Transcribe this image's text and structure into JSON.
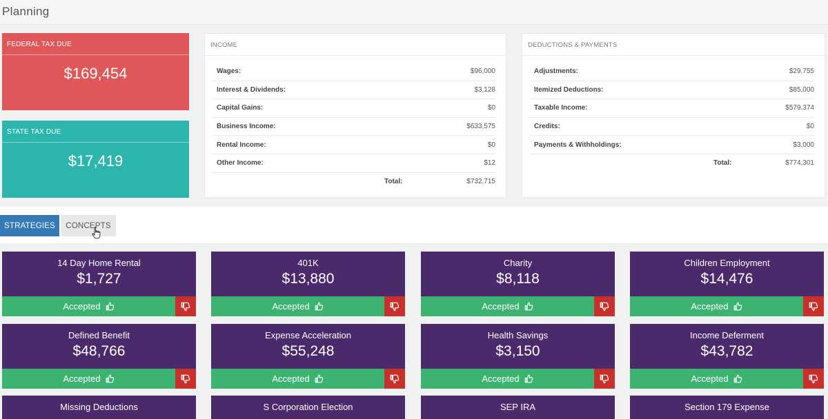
{
  "page": {
    "title": "Planning"
  },
  "federal": {
    "label": "FEDERAL TAX DUE",
    "value": "$169,454"
  },
  "state": {
    "label": "STATE TAX DUE",
    "value": "$17,419"
  },
  "income": {
    "title": "INCOME",
    "rows": [
      {
        "label": "Wages:",
        "value": "$96,000"
      },
      {
        "label": "Interest & Dividends:",
        "value": "$3,128"
      },
      {
        "label": "Capital Gains:",
        "value": "$0"
      },
      {
        "label": "Business Income:",
        "value": "$633,575"
      },
      {
        "label": "Rental Income:",
        "value": "$0"
      },
      {
        "label": "Other Income:",
        "value": "$12"
      }
    ],
    "total_label": "Total:",
    "total_value": "$732,715"
  },
  "deductions": {
    "title": "DEDUCTIONS & PAYMENTS",
    "rows": [
      {
        "label": "Adjustments:",
        "value": "$29,755"
      },
      {
        "label": "Itemized Deductions:",
        "value": "$85,000"
      },
      {
        "label": "Taxable Income:",
        "value": "$579,374"
      },
      {
        "label": "Credits:",
        "value": "$0"
      },
      {
        "label": "Payments & Withholdings:",
        "value": "$3,000"
      }
    ],
    "total_label": "Total:",
    "total_value": "$774,301"
  },
  "tabs": [
    {
      "label": "STRATEGIES",
      "active": true
    },
    {
      "label": "CONCEPTS",
      "active": false
    }
  ],
  "strategies": [
    {
      "name": "14 Day Home Rental",
      "amount": "$1,727",
      "status": "Accepted"
    },
    {
      "name": "401K",
      "amount": "$13,880",
      "status": "Accepted"
    },
    {
      "name": "Charity",
      "amount": "$8,118",
      "status": "Accepted"
    },
    {
      "name": "Children Employment",
      "amount": "$14,476",
      "status": "Accepted"
    },
    {
      "name": "Defined Benefit",
      "amount": "$48,766",
      "status": "Accepted"
    },
    {
      "name": "Expense Acceleration",
      "amount": "$55,248",
      "status": "Accepted"
    },
    {
      "name": "Health Savings",
      "amount": "$3,150",
      "status": "Accepted"
    },
    {
      "name": "Income Deferment",
      "amount": "$43,782",
      "status": "Accepted"
    },
    {
      "name": "Missing Deductions",
      "amount": "",
      "status": ""
    },
    {
      "name": "S Corporation Election",
      "amount": "",
      "status": ""
    },
    {
      "name": "SEP IRA",
      "amount": "",
      "status": ""
    },
    {
      "name": "Section 179 Expense",
      "amount": "",
      "status": ""
    }
  ],
  "icons": {
    "accept": "thumbs-up-icon",
    "reject": "thumbs-down-icon",
    "cursor": "hand-pointer-icon"
  },
  "colors": {
    "federal": "#e0575a",
    "state": "#2bb5ad",
    "strategy": "#4a2a6b",
    "accepted": "#3cb371",
    "reject": "#c9302c",
    "tab_active": "#337ab7"
  }
}
